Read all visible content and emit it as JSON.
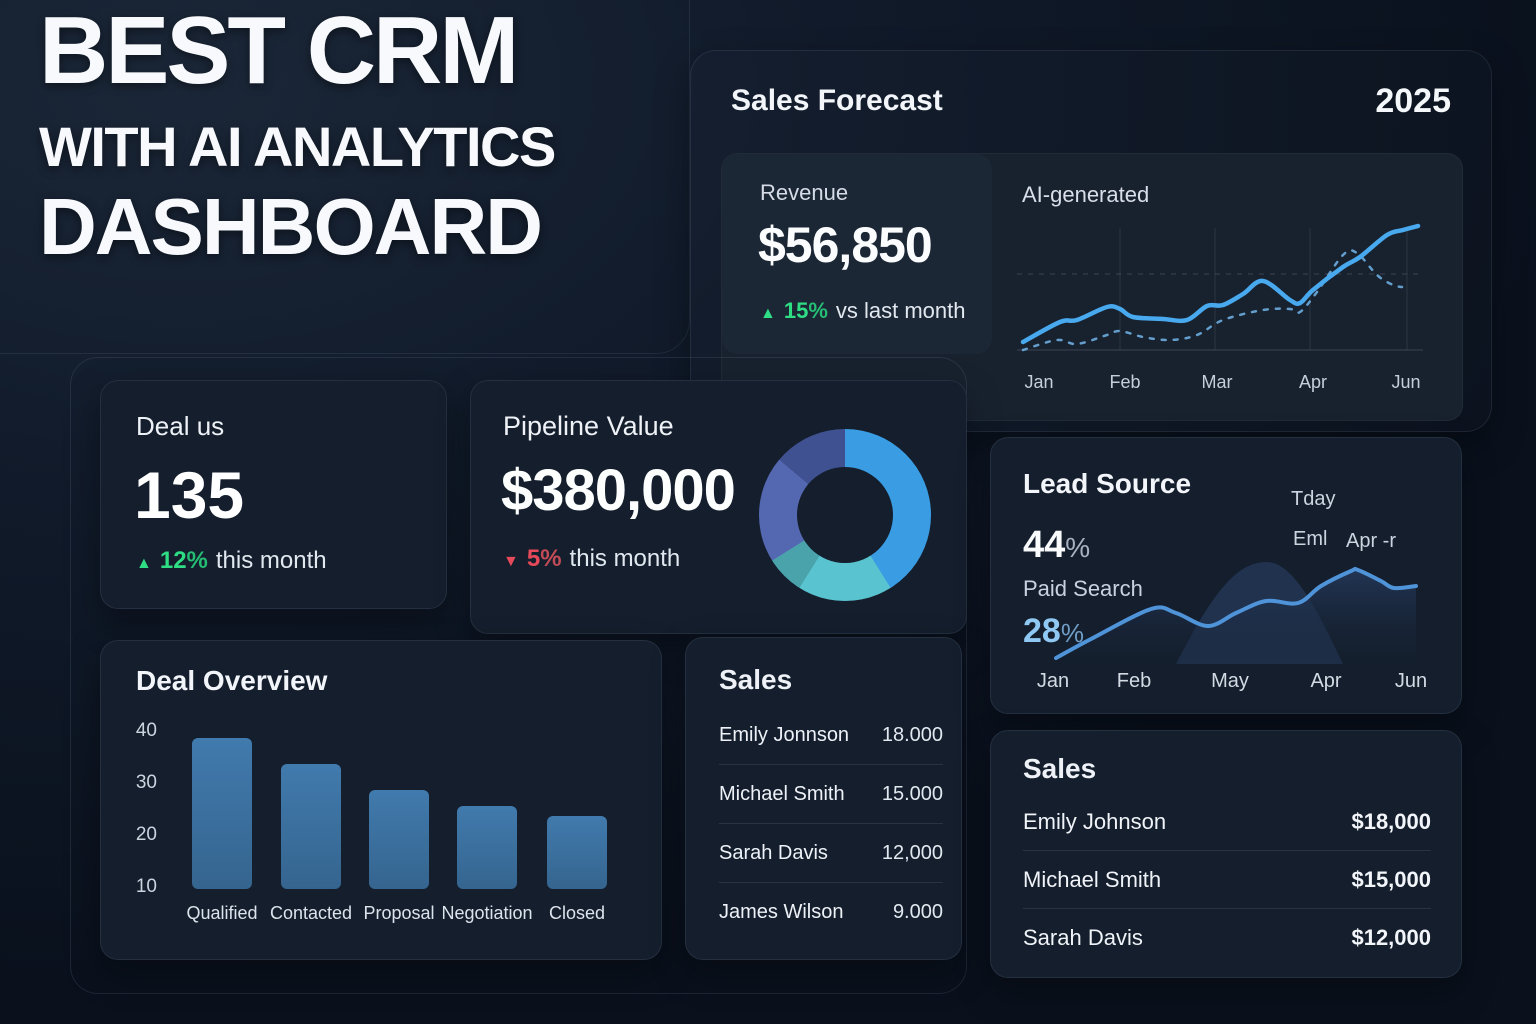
{
  "title": {
    "lines": [
      "BEST CRM",
      "WITH AI ANALYTICS",
      "DASHBOARD"
    ]
  },
  "icons": {
    "up_triangle": "▲",
    "down_triangle": "▼"
  },
  "colors": {
    "green": "#2edd84",
    "red": "#e6495a",
    "forecast_line": "#49a9ef",
    "forecast_dashed": "#6cacdf",
    "lead_line": "#4f93d9",
    "bar_blue": "#3b6f9f",
    "light_blue": "#8fc8f2"
  },
  "sales_forecast": {
    "title": "Sales Forecast",
    "year": "2025",
    "revenue_label": "Revenue",
    "revenue_value": "$56,850",
    "delta_value": "15",
    "delta_sign": "%",
    "delta_note": "vs last month",
    "ai_label": "AI-generated",
    "months": [
      "Jan",
      "Feb",
      "Mar",
      "Apr",
      "Jun"
    ],
    "chart": {
      "type": "line",
      "solid": [
        [
          8,
          120
        ],
        [
          45,
          100
        ],
        [
          62,
          98
        ],
        [
          92,
          85
        ],
        [
          105,
          87
        ],
        [
          118,
          95
        ],
        [
          148,
          97
        ],
        [
          172,
          98
        ],
        [
          192,
          84
        ],
        [
          208,
          83
        ],
        [
          228,
          72
        ],
        [
          248,
          59
        ],
        [
          275,
          78
        ],
        [
          285,
          81
        ],
        [
          298,
          68
        ],
        [
          328,
          45
        ],
        [
          345,
          35
        ],
        [
          372,
          13
        ],
        [
          388,
          8
        ],
        [
          403,
          4
        ]
      ],
      "dashed": [
        [
          8,
          128
        ],
        [
          42,
          118
        ],
        [
          62,
          122
        ],
        [
          92,
          113
        ],
        [
          105,
          109
        ],
        [
          128,
          115
        ],
        [
          155,
          118
        ],
        [
          182,
          113
        ],
        [
          208,
          98
        ],
        [
          248,
          88
        ],
        [
          275,
          87
        ],
        [
          285,
          90
        ],
        [
          302,
          70
        ],
        [
          328,
          33
        ],
        [
          342,
          31
        ],
        [
          362,
          53
        ],
        [
          378,
          63
        ],
        [
          387,
          65
        ]
      ]
    }
  },
  "deal_status": {
    "title": "Deal us",
    "value": "135",
    "delta_value": "12",
    "delta_sign": "%",
    "delta_note": "this month"
  },
  "pipeline": {
    "title": "Pipeline Value",
    "value": "$380,000",
    "delta_value": "5",
    "delta_sign": "%",
    "delta_note": "this month",
    "donut_segments": [
      {
        "color": "#3a9de4",
        "from": 0,
        "to": 148
      },
      {
        "color": "#59c3d0",
        "from": 148,
        "to": 212
      },
      {
        "color": "#4aa3ab",
        "from": 212,
        "to": 238
      },
      {
        "color": "#5468b2",
        "from": 238,
        "to": 310
      },
      {
        "color": "#3f5190",
        "from": 310,
        "to": 360
      }
    ]
  },
  "deal_overview": {
    "title": "Deal Overview",
    "type": "bar",
    "yticks": [
      "40",
      "30",
      "20",
      "10"
    ],
    "categories": [
      "Qualified",
      "Contacted",
      "Proposal",
      "Negotiation",
      "Closed"
    ],
    "values": [
      39,
      34,
      29,
      26,
      24
    ],
    "baseline": 10,
    "ymax": 40
  },
  "sales_list": {
    "title": "Sales",
    "rows": [
      {
        "name": "Emily Jonnson",
        "value": "18.000"
      },
      {
        "name": "Michael Smith",
        "value": "15.000"
      },
      {
        "name": "Sarah Davis",
        "value": "12,000"
      },
      {
        "name": "James Wilson",
        "value": "9.000"
      }
    ]
  },
  "lead_source": {
    "title": "Lead Source",
    "value_primary": "44",
    "value_primary_sign": "%",
    "label_secondary": "Paid Search",
    "value_secondary": "28",
    "value_secondary_sign": "%",
    "legend": [
      "Tday",
      "Eml",
      "Apr -r"
    ],
    "months": [
      "Jan",
      "Feb",
      "May",
      "Apr",
      "Jun"
    ],
    "chart": {
      "type": "area",
      "line": [
        [
          65,
          220
        ],
        [
          100,
          201
        ],
        [
          160,
          171
        ],
        [
          185,
          175
        ],
        [
          217,
          188
        ],
        [
          245,
          175
        ],
        [
          275,
          163
        ],
        [
          307,
          165
        ],
        [
          330,
          148
        ],
        [
          360,
          133
        ],
        [
          367,
          132
        ],
        [
          390,
          143
        ],
        [
          403,
          150
        ],
        [
          425,
          148
        ]
      ],
      "baseline": 226
    }
  },
  "sales_right": {
    "title": "Sales",
    "rows": [
      {
        "name": "Emily Johnson",
        "value": "$18,000"
      },
      {
        "name": "Michael Smith",
        "value": "$15,000"
      },
      {
        "name": "Sarah Davis",
        "value": "$12,000"
      }
    ]
  }
}
